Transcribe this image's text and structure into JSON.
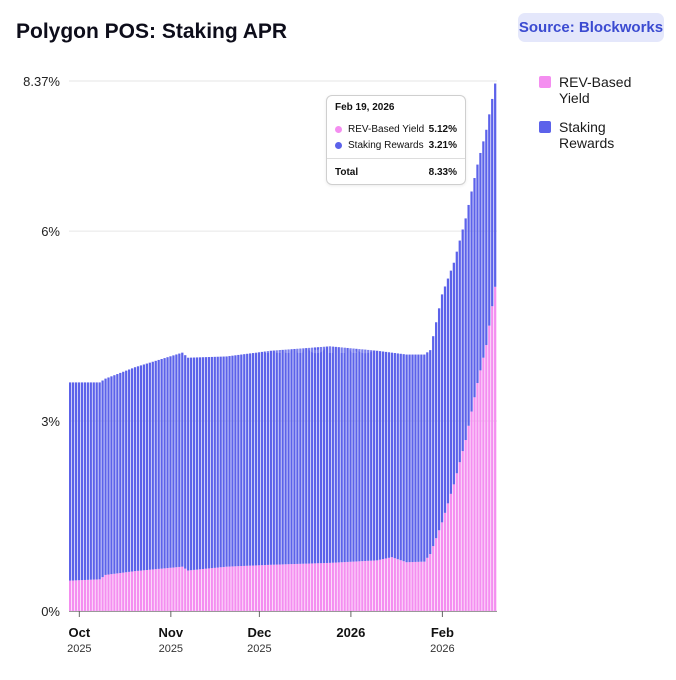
{
  "header": {
    "title": "Polygon POS: Staking APR",
    "source_label": "Source: Blockworks"
  },
  "watermark": "Blockworks",
  "legend": [
    {
      "label": "REV-Based Yield",
      "color": "#f48ef0"
    },
    {
      "label": "Staking Rewards",
      "color": "#5c62ea"
    }
  ],
  "tooltip": {
    "date": "Feb 19, 2026",
    "rows": [
      {
        "name": "REV-Based Yield",
        "value": "5.12%",
        "color": "#f48ef0"
      },
      {
        "name": "Staking Rewards",
        "value": "3.21%",
        "color": "#5c62ea"
      }
    ],
    "total_label": "Total",
    "total_value": "8.33%"
  },
  "chart_data": {
    "type": "bar",
    "stacked": true,
    "title": "Polygon POS: Staking APR",
    "ylim": [
      0,
      8.37
    ],
    "y_ticks": [
      {
        "value": 0,
        "label": "0%"
      },
      {
        "value": 3,
        "label": "3%"
      },
      {
        "value": 6,
        "label": "6%"
      },
      {
        "value": 8.37,
        "label": "8.37%"
      }
    ],
    "x_ticks": [
      {
        "date": "2025-10-01",
        "label": "Oct",
        "sublabel": "2025"
      },
      {
        "date": "2025-11-01",
        "label": "Nov",
        "sublabel": "2025"
      },
      {
        "date": "2025-12-01",
        "label": "Dec",
        "sublabel": "2025"
      },
      {
        "date": "2026-01-01",
        "label": "2026",
        "sublabel": ""
      },
      {
        "date": "2026-02-01",
        "label": "Feb",
        "sublabel": "2026"
      }
    ],
    "date_range": [
      "2025-09-28",
      "2026-02-19"
    ],
    "series": [
      {
        "name": "REV-Based Yield",
        "color": "#f48ef0",
        "points": [
          [
            "2025-09-28",
            0.48
          ],
          [
            "2025-10-08",
            0.5
          ],
          [
            "2025-10-10",
            0.57
          ],
          [
            "2025-10-20",
            0.63
          ],
          [
            "2025-11-05",
            0.7
          ],
          [
            "2025-11-07",
            0.64
          ],
          [
            "2025-11-20",
            0.7
          ],
          [
            "2025-12-05",
            0.73
          ],
          [
            "2025-12-25",
            0.76
          ],
          [
            "2026-01-10",
            0.8
          ],
          [
            "2026-01-15",
            0.85
          ],
          [
            "2026-01-20",
            0.77
          ],
          [
            "2026-01-26",
            0.78
          ],
          [
            "2026-01-28",
            0.9
          ],
          [
            "2026-02-01",
            1.4
          ],
          [
            "2026-02-05",
            2.0
          ],
          [
            "2026-02-09",
            2.7
          ],
          [
            "2026-02-13",
            3.6
          ],
          [
            "2026-02-16",
            4.2
          ],
          [
            "2026-02-19",
            5.12
          ]
        ]
      },
      {
        "name": "Staking Rewards",
        "color": "#5c62ea",
        "points": [
          [
            "2025-09-28",
            3.13
          ],
          [
            "2025-10-08",
            3.11
          ],
          [
            "2025-10-10",
            3.1
          ],
          [
            "2025-10-20",
            3.22
          ],
          [
            "2025-11-05",
            3.38
          ],
          [
            "2025-11-07",
            3.36
          ],
          [
            "2025-11-20",
            3.32
          ],
          [
            "2025-12-05",
            3.38
          ],
          [
            "2025-12-25",
            3.42
          ],
          [
            "2026-01-10",
            3.31
          ],
          [
            "2026-01-15",
            3.23
          ],
          [
            "2026-01-20",
            3.28
          ],
          [
            "2026-01-26",
            3.27
          ],
          [
            "2026-01-28",
            3.22
          ],
          [
            "2026-02-01",
            3.6
          ],
          [
            "2026-02-05",
            3.5
          ],
          [
            "2026-02-09",
            3.5
          ],
          [
            "2026-02-13",
            3.45
          ],
          [
            "2026-02-16",
            3.4
          ],
          [
            "2026-02-19",
            3.21
          ]
        ]
      }
    ],
    "grid": true,
    "legend_position": "top-right"
  }
}
